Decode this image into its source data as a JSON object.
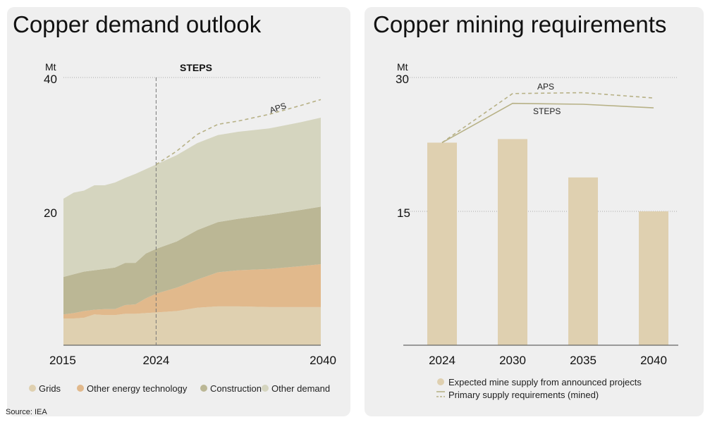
{
  "source": "Source: IEA",
  "colors": {
    "grids": "#dfd0b0",
    "other_energy": "#e1b98c",
    "construction": "#bbb795",
    "other_demand": "#d5d5bf",
    "line": "#b7b186",
    "grid": "#aaaaaa",
    "text": "#111111"
  },
  "chart_data": [
    {
      "type": "area",
      "title": "Copper demand outlook",
      "ylabel": "Mt",
      "ylim": [
        0,
        40
      ],
      "yticks": [
        "20",
        "40"
      ],
      "xticks": [
        "2015",
        "2024",
        "2040"
      ],
      "annotation": "STEPS",
      "divider_year": 2024,
      "stacked": true,
      "legend_position": "bottom",
      "x": [
        2015,
        2016,
        2017,
        2018,
        2019,
        2020,
        2021,
        2022,
        2023,
        2024,
        2026,
        2028,
        2030,
        2032,
        2035,
        2038,
        2040
      ],
      "series": [
        {
          "name": "Grids",
          "key": "grids",
          "values": [
            4.0,
            4.0,
            4.1,
            4.6,
            4.5,
            4.5,
            4.7,
            4.7,
            4.8,
            4.9,
            5.1,
            5.6,
            5.8,
            5.8,
            5.7,
            5.7,
            5.7
          ]
        },
        {
          "name": "Other energy technology",
          "key": "other_energy",
          "values": [
            0.6,
            0.8,
            1.0,
            0.7,
            0.9,
            0.9,
            1.3,
            1.4,
            2.2,
            2.8,
            3.5,
            4.2,
            5.1,
            5.4,
            5.7,
            6.1,
            6.4
          ]
        },
        {
          "name": "Construction",
          "key": "construction",
          "values": [
            5.6,
            5.8,
            5.9,
            5.9,
            6.0,
            6.2,
            6.3,
            6.2,
            6.7,
            6.7,
            6.9,
            7.4,
            7.5,
            7.7,
            8.1,
            8.4,
            8.6
          ]
        },
        {
          "name": "Other demand",
          "key": "other_demand",
          "values": [
            11.7,
            12.2,
            12.1,
            12.7,
            12.5,
            12.7,
            12.7,
            13.3,
            12.6,
            12.6,
            12.9,
            13.0,
            13.0,
            13.0,
            12.9,
            13.1,
            13.3
          ]
        }
      ],
      "aps": {
        "label": "APS",
        "x": [
          2024,
          2026,
          2028,
          2030,
          2032,
          2035,
          2038,
          2040
        ],
        "values": [
          27.0,
          29.0,
          31.5,
          33.0,
          33.5,
          34.5,
          35.8,
          36.7
        ]
      }
    },
    {
      "type": "bar",
      "title": "Copper mining requirements",
      "ylabel": "Mt",
      "ylim": [
        0,
        30
      ],
      "yticks": [
        "15",
        "30"
      ],
      "categories": [
        "2024",
        "2030",
        "2035",
        "2040"
      ],
      "bars": {
        "name": "Expected mine supply from announced projects",
        "values": [
          22.7,
          23.1,
          18.8,
          15.0
        ]
      },
      "lines": [
        {
          "name": "STEPS",
          "label": "STEPS",
          "values": [
            22.7,
            27.1,
            27.0,
            26.6
          ],
          "dashed": false
        },
        {
          "name": "APS",
          "label": "APS",
          "values": [
            22.7,
            28.2,
            28.3,
            27.7
          ],
          "dashed": true
        }
      ],
      "legend": [
        "Expected mine supply from announced projects",
        "Primary supply requirements (mined)"
      ],
      "legend_position": "bottom"
    }
  ]
}
